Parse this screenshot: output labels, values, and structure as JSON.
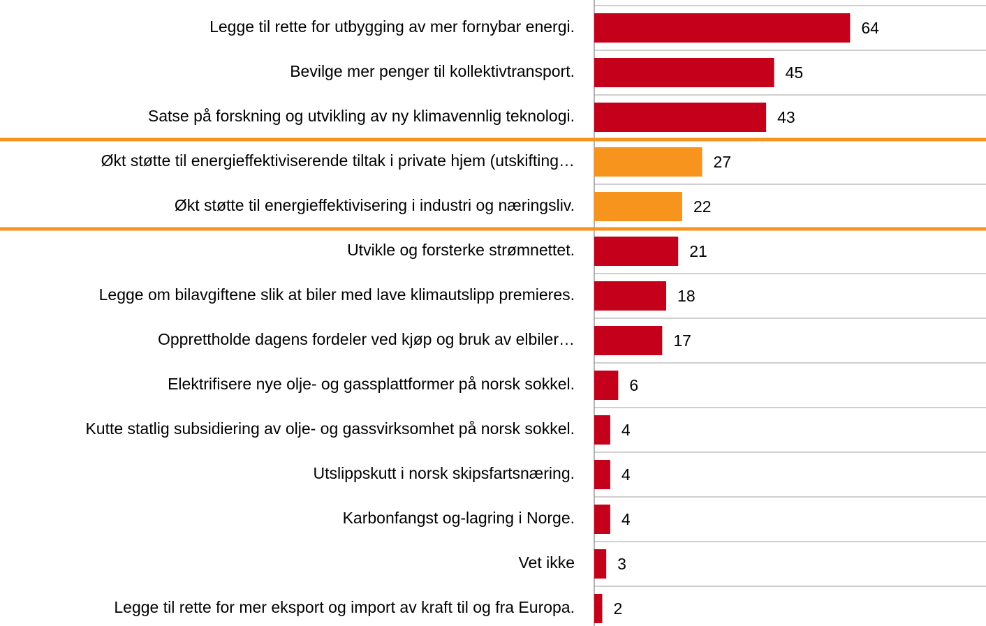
{
  "chart_data": {
    "type": "barh",
    "categories": [
      "Legge til rette for utbygging av mer fornybar energi.",
      "Bevilge mer penger til kollektivtransport.",
      "Satse på forskning og utvikling av ny klimavennlig teknologi.",
      "Økt støtte til energieffektiviserende tiltak i private hjem (utskifting…",
      "Økt støtte til energieffektivisering i industri og næringsliv.",
      "Utvikle og forsterke strømnettet.",
      "Legge om bilavgiftene slik at biler med lave klimautslipp premieres.",
      "Opprettholde dagens fordeler ved kjøp og bruk av elbiler…",
      "Elektrifisere nye olje- og gassplattformer på norsk sokkel.",
      "Kutte statlig subsidiering av olje- og gassvirksomhet på norsk sokkel.",
      "Utslippskutt i norsk skipsfartsnæring.",
      "Karbonfangst og-lagring i Norge.",
      "Vet ikke",
      "Legge til rette for mer eksport og import av kraft til og fra Europa."
    ],
    "values": [
      64,
      45,
      43,
      27,
      22,
      21,
      18,
      17,
      6,
      4,
      4,
      4,
      3,
      2
    ],
    "colors": [
      "#c4001a",
      "#c4001a",
      "#c4001a",
      "#f7941d",
      "#f7941d",
      "#c4001a",
      "#c4001a",
      "#c4001a",
      "#c4001a",
      "#c4001a",
      "#c4001a",
      "#c4001a",
      "#c4001a",
      "#c4001a"
    ],
    "xlim": [
      0,
      98
    ],
    "grid": true
  }
}
